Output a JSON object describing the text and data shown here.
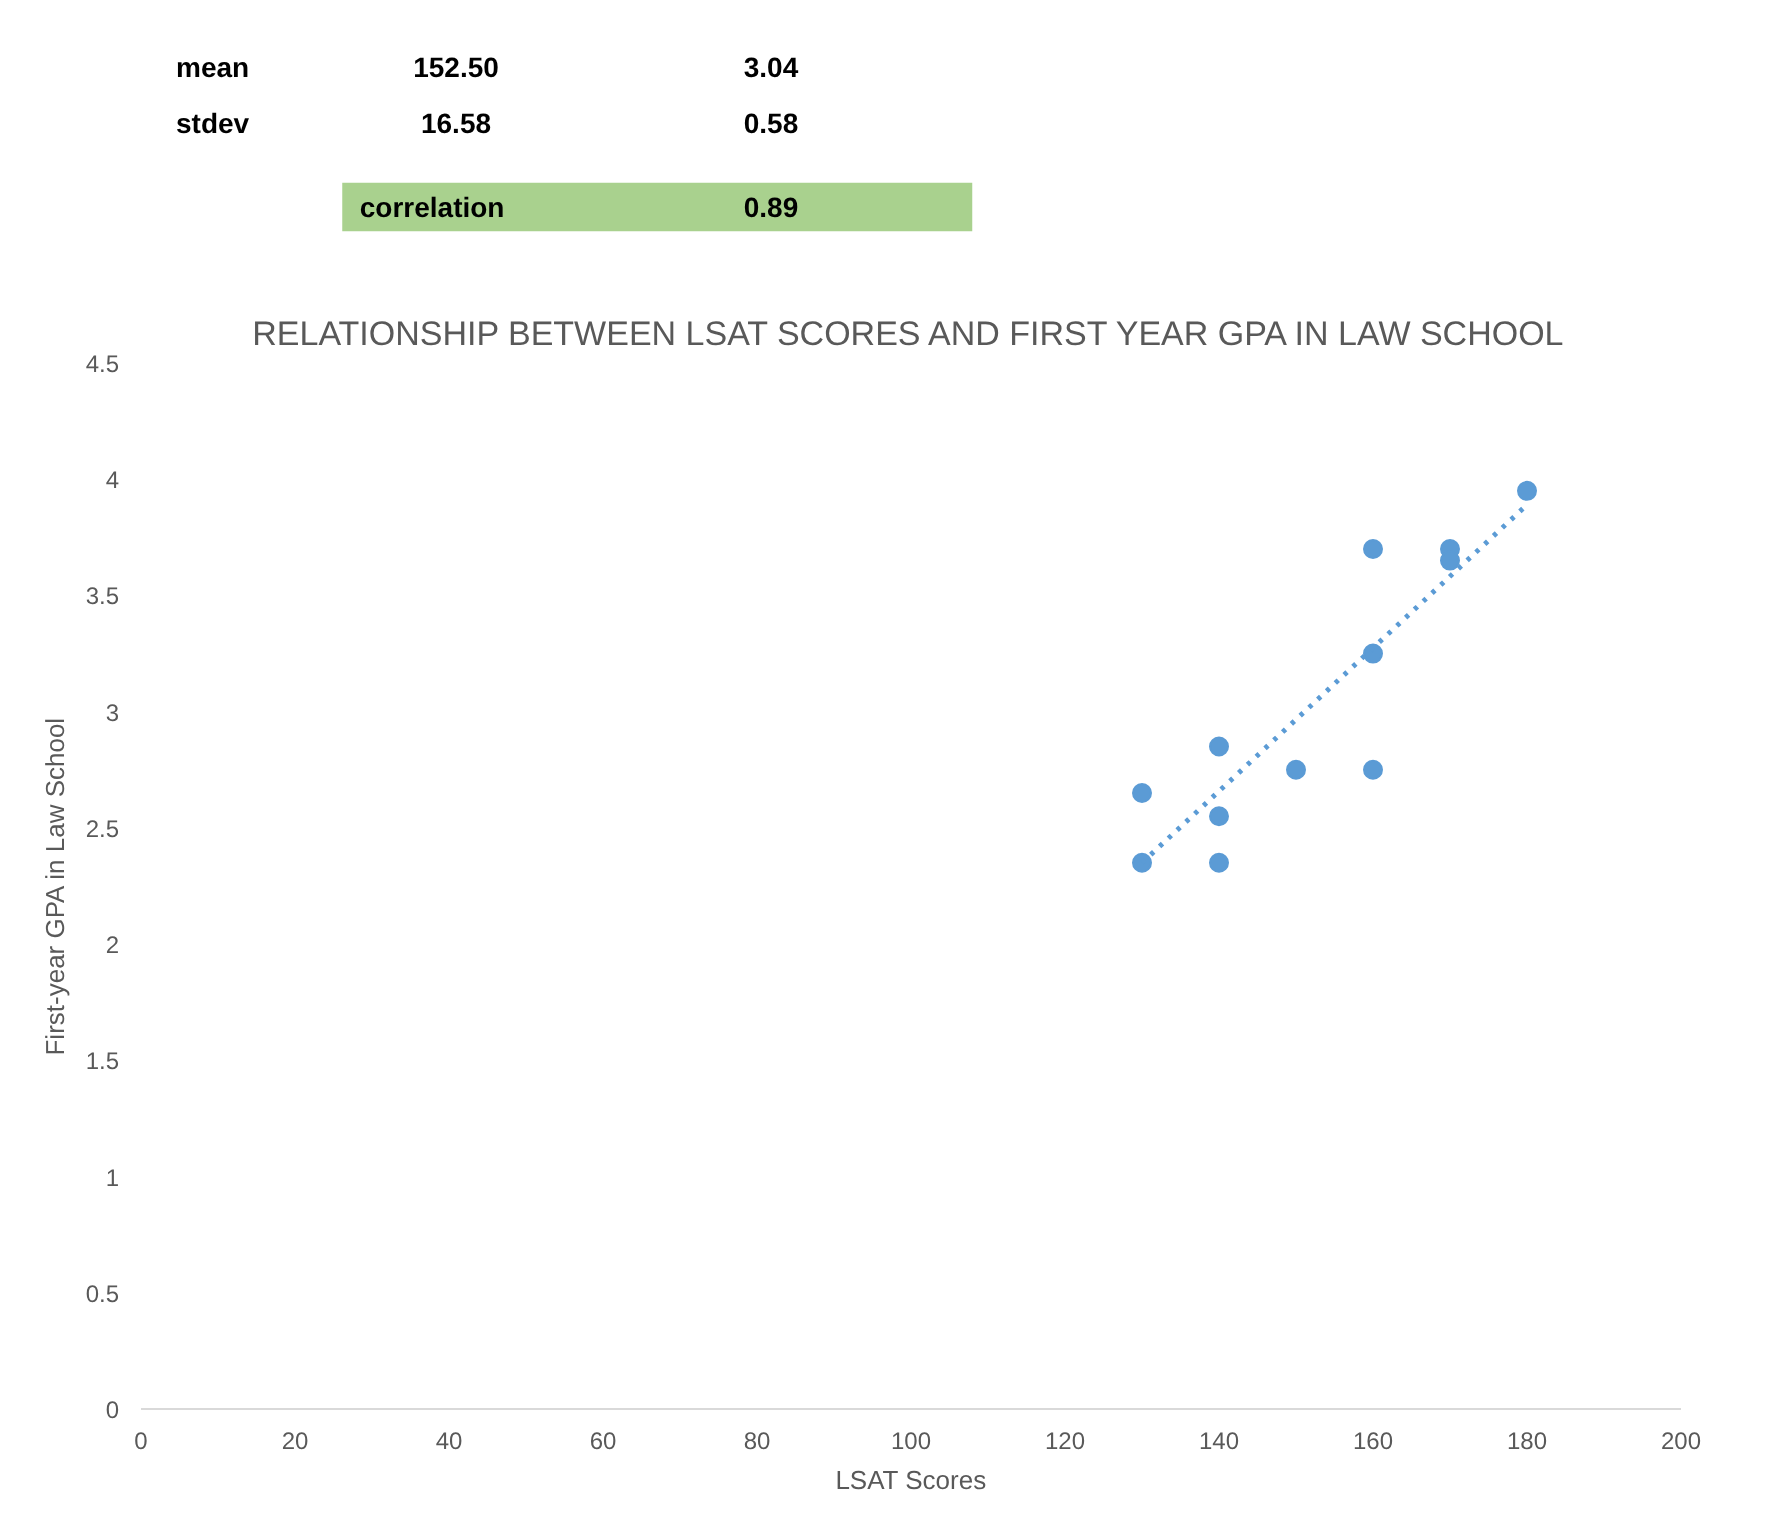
{
  "chart_data": {
    "type": "scatter",
    "title": "RELATIONSHIP BETWEEN LSAT SCORES AND FIRST YEAR GPA IN LAW SCHOOL",
    "xlabel": "LSAT Scores",
    "ylabel": "First-year GPA in Law School",
    "annotations": [
      "mean",
      "152.50",
      "3.04",
      "stdev",
      "16.58",
      "0.58",
      "correlation",
      "0.89"
    ],
    "series": [
      {
        "color": "#5b9bd5",
        "marker": "circle",
        "x": [
          130,
          130,
          140,
          140,
          140,
          150,
          160,
          160,
          160,
          170,
          170,
          180
        ],
        "values": [
          2.65,
          2.35,
          2.85,
          2.55,
          2.35,
          2.75,
          3.7,
          3.25,
          2.75,
          3.7,
          3.65,
          3.95
        ]
      },
      {
        "type": "line",
        "color": "#5b9bd5",
        "line_style": "dotted",
        "x": [
          130,
          180
        ],
        "values": [
          2.35,
          3.89
        ]
      }
    ],
    "grid": false,
    "xlim": [
      0,
      200
    ],
    "xticks": [
      0,
      20,
      40,
      60,
      80,
      100,
      120,
      140,
      160,
      180,
      200
    ],
    "ylim": [
      0,
      4.5
    ],
    "yticks": [
      0,
      0.5,
      1,
      1.5,
      2,
      2.5,
      3,
      3.5,
      4,
      4.5
    ]
  }
}
